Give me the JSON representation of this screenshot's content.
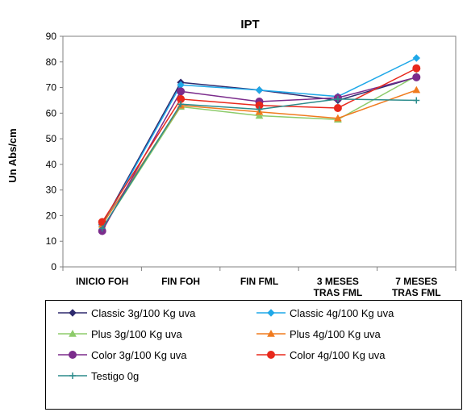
{
  "chart_data": {
    "type": "line",
    "title": "IPT",
    "xlabel": "",
    "ylabel": "Un Abs/cm",
    "ylim": [
      0,
      90
    ],
    "yticks": [
      0,
      10,
      20,
      30,
      40,
      50,
      60,
      70,
      80,
      90
    ],
    "categories": [
      [
        "INICIO FOH"
      ],
      [
        "FIN FOH"
      ],
      [
        "FIN FML"
      ],
      [
        "3 MESES",
        "TRAS FML"
      ],
      [
        "7 MESES",
        "TRAS FML"
      ]
    ],
    "grid": false,
    "legend_position": "bottom",
    "series": [
      {
        "name": "Classic 3g/100 Kg uva",
        "color": "#2E2A6E",
        "marker": "diamond",
        "values": [
          16.5,
          72,
          69,
          65,
          74
        ]
      },
      {
        "name": "Classic 4g/100 Kg uva",
        "color": "#1FA8E8",
        "marker": "diamond",
        "values": [
          16,
          71,
          69,
          66.5,
          81.5
        ]
      },
      {
        "name": "Plus 3g/100 Kg uva",
        "color": "#8DCB6B",
        "marker": "triangle",
        "values": [
          15,
          62.5,
          59,
          57.5,
          74.5
        ]
      },
      {
        "name": "Plus 4g/100 Kg uva",
        "color": "#F07B1E",
        "marker": "triangle",
        "values": [
          16.5,
          63,
          60.5,
          58,
          69
        ]
      },
      {
        "name": "Color 3g/100 Kg uva",
        "color": "#7B2C8C",
        "marker": "circle",
        "values": [
          14,
          68.5,
          64.5,
          66,
          74
        ]
      },
      {
        "name": "Color 4g/100 Kg uva",
        "color": "#E8291C",
        "marker": "circle",
        "values": [
          17.5,
          65.5,
          63,
          62,
          77.5
        ]
      },
      {
        "name": "Testigo 0g",
        "color": "#2C8C8C",
        "marker": "plus",
        "values": [
          15,
          63.5,
          61.5,
          65.5,
          65
        ]
      }
    ]
  }
}
